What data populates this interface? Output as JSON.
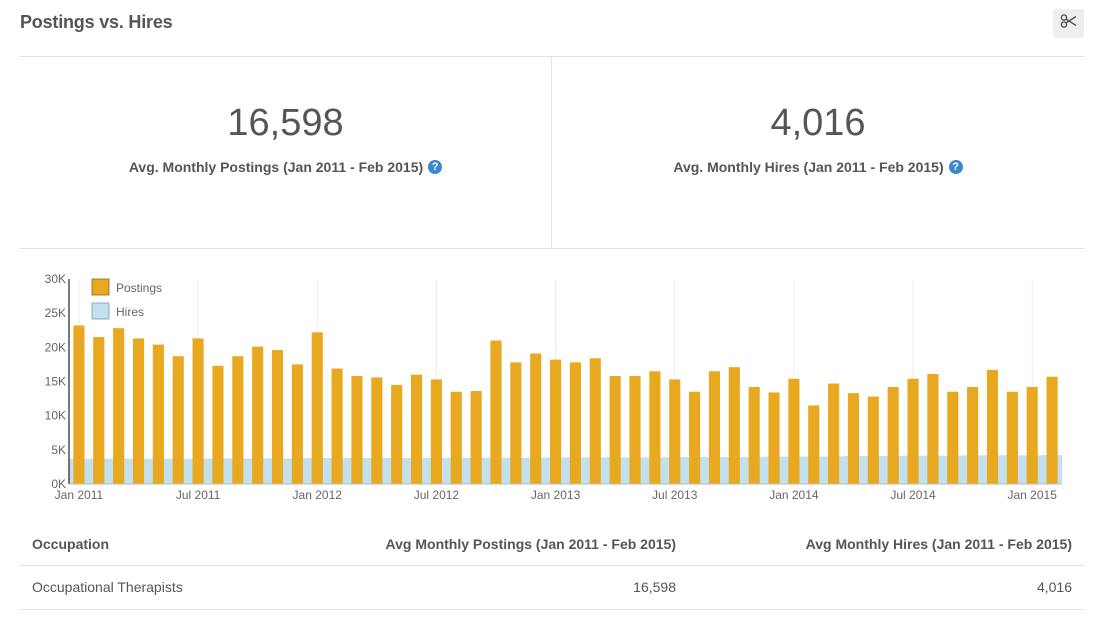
{
  "header": {
    "title": "Postings vs. Hires",
    "tool_icon": "scissors-icon"
  },
  "stats": {
    "postings": {
      "value": "16,598",
      "label": "Avg. Monthly Postings (Jan 2011 - Feb 2015)"
    },
    "hires": {
      "value": "4,016",
      "label": "Avg. Monthly Hires (Jan 2011 - Feb 2015)"
    }
  },
  "table": {
    "headers": [
      "Occupation",
      "Avg Monthly Postings (Jan 2011 - Feb 2015)",
      "Avg Monthly Hires (Jan 2011 - Feb 2015)"
    ],
    "rows": [
      [
        "Occupational Therapists",
        "16,598",
        "4,016"
      ]
    ]
  },
  "chart_data": {
    "type": "bar",
    "start": "Jan 2011",
    "x": [
      "Jan 2011",
      "Feb 2011",
      "Mar 2011",
      "Apr 2011",
      "May 2011",
      "Jun 2011",
      "Jul 2011",
      "Aug 2011",
      "Sep 2011",
      "Oct 2011",
      "Nov 2011",
      "Dec 2011",
      "Jan 2012",
      "Feb 2012",
      "Mar 2012",
      "Apr 2012",
      "May 2012",
      "Jun 2012",
      "Jul 2012",
      "Aug 2012",
      "Sep 2012",
      "Oct 2012",
      "Nov 2012",
      "Dec 2012",
      "Jan 2013",
      "Feb 2013",
      "Mar 2013",
      "Apr 2013",
      "May 2013",
      "Jun 2013",
      "Jul 2013",
      "Aug 2013",
      "Sep 2013",
      "Oct 2013",
      "Nov 2013",
      "Dec 2013",
      "Jan 2014",
      "Feb 2014",
      "Mar 2014",
      "Apr 2014",
      "May 2014",
      "Jun 2014",
      "Jul 2014",
      "Aug 2014",
      "Sep 2014",
      "Oct 2014",
      "Nov 2014",
      "Dec 2014",
      "Jan 2015",
      "Feb 2015"
    ],
    "series": [
      {
        "name": "Postings",
        "kind": "bar",
        "color": "#e8a820",
        "values": [
          23200,
          21500,
          22800,
          21300,
          20400,
          18700,
          21300,
          17300,
          18700,
          20100,
          19600,
          17500,
          22200,
          16900,
          15800,
          15600,
          14500,
          16000,
          15300,
          13500,
          13600,
          21000,
          17800,
          19100,
          18200,
          17800,
          18400,
          15800,
          15800,
          16500,
          15300,
          13500,
          16500,
          17100,
          14200,
          13400,
          15400,
          11500,
          14700,
          13300,
          12800,
          14200,
          15400,
          16100,
          13500,
          14200,
          16700,
          13500,
          14200,
          15700
        ]
      },
      {
        "name": "Hires",
        "kind": "area",
        "color": "#c3e0ee",
        "values": [
          3700,
          3700,
          3700,
          3700,
          3700,
          3700,
          3700,
          3750,
          3750,
          3750,
          3750,
          3750,
          3800,
          3800,
          3800,
          3800,
          3800,
          3800,
          3850,
          3850,
          3850,
          3850,
          3850,
          3850,
          3900,
          3900,
          3900,
          3900,
          3900,
          3900,
          3950,
          3950,
          3950,
          3950,
          3950,
          4000,
          4000,
          4000,
          4050,
          4100,
          4100,
          4100,
          4150,
          4150,
          4150,
          4200,
          4200,
          4200,
          4200,
          4250
        ]
      }
    ],
    "y_ticks": [
      "0K",
      "5K",
      "10K",
      "15K",
      "20K",
      "25K",
      "30K"
    ],
    "x_ticks": [
      "Jan 2011",
      "Jul 2011",
      "Jan 2012",
      "Jul 2012",
      "Jan 2013",
      "Jul 2013",
      "Jan 2014",
      "Jul 2014",
      "Jan 2015"
    ],
    "ylim": [
      0,
      30000
    ],
    "grid": true,
    "legend_position": "top-left"
  }
}
